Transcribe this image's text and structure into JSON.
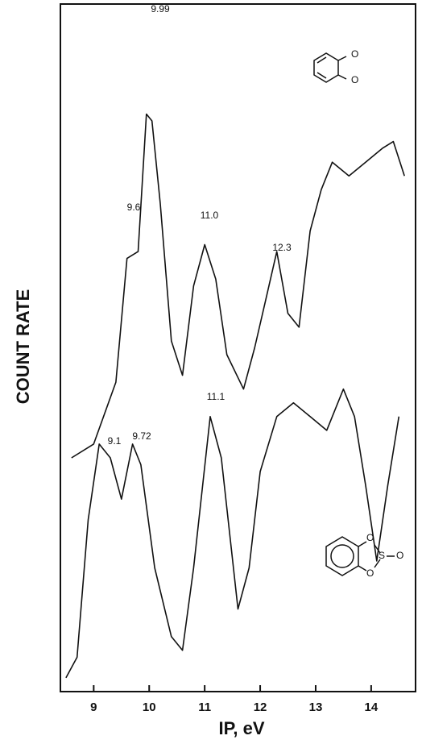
{
  "chart_data": {
    "type": "line",
    "x_label": "IP, eV",
    "y_label": "COUNT RATE",
    "xlim": [
      8.4,
      14.8
    ],
    "xticks": [
      9,
      10,
      11,
      12,
      13,
      14
    ],
    "ylim": [
      0,
      100
    ],
    "series": [
      {
        "color": "#111111",
        "x": [
          8.6,
          9.0,
          9.4,
          9.6,
          9.8,
          9.95,
          10.05,
          10.2,
          10.4,
          10.6,
          10.8,
          11.0,
          11.2,
          11.4,
          11.7,
          11.9,
          12.1,
          12.3,
          12.5,
          12.7,
          12.9,
          13.1,
          13.3,
          13.6,
          13.9,
          14.2,
          14.4,
          14.6
        ],
        "values": [
          34,
          36,
          45,
          63,
          64,
          84,
          83,
          71,
          51,
          46,
          59,
          65,
          60,
          49,
          44,
          50,
          57,
          64,
          55,
          53,
          67,
          73,
          77,
          75,
          77,
          79,
          80,
          75
        ]
      },
      {
        "color": "#111111",
        "x": [
          8.5,
          8.7,
          8.9,
          9.1,
          9.3,
          9.5,
          9.7,
          9.85,
          10.1,
          10.4,
          10.6,
          10.8,
          11.1,
          11.3,
          11.6,
          11.8,
          12.0,
          12.3,
          12.6,
          12.9,
          13.2,
          13.5,
          13.7,
          13.9,
          14.1,
          14.3,
          14.5
        ],
        "values": [
          2,
          5,
          25,
          36,
          34,
          28,
          36,
          33,
          18,
          8,
          6,
          18,
          40,
          34,
          12,
          18,
          32,
          40,
          42,
          40,
          38,
          44,
          40,
          30,
          19,
          30,
          40
        ]
      }
    ],
    "annotations": [
      "9.99",
      "9.6",
      "11.0",
      "12.3",
      "9.1",
      "9.72",
      "11.1"
    ]
  }
}
